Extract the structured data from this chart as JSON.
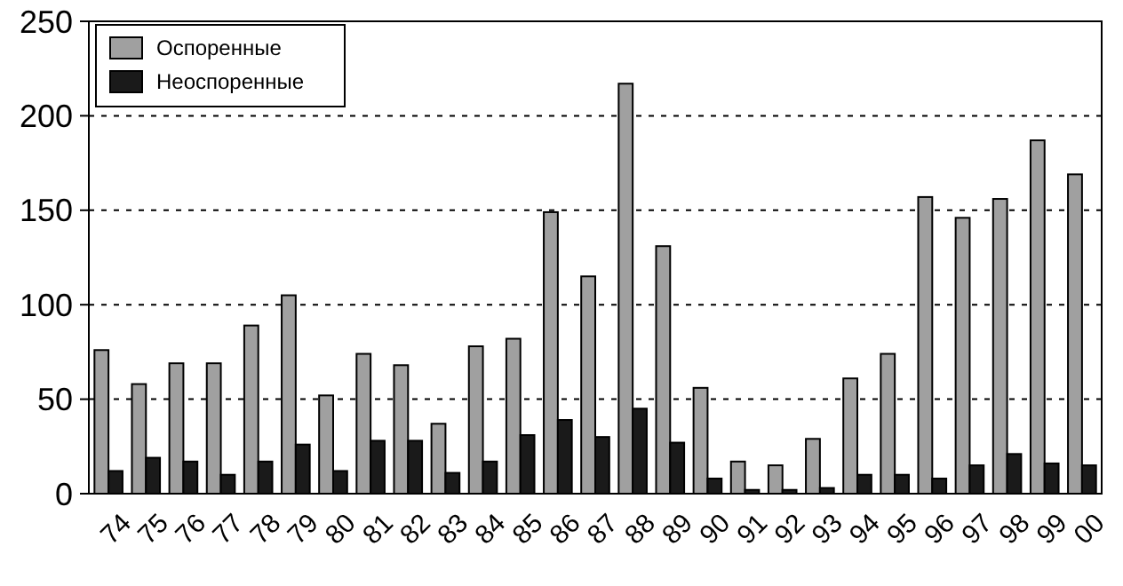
{
  "chart_data": {
    "type": "bar",
    "categories": [
      "74",
      "75",
      "76",
      "77",
      "78",
      "79",
      "80",
      "81",
      "82",
      "83",
      "84",
      "85",
      "86",
      "87",
      "88",
      "89",
      "90",
      "91",
      "92",
      "93",
      "94",
      "95",
      "96",
      "97",
      "98",
      "99",
      "00"
    ],
    "series": [
      {
        "name": "Оспоренные",
        "color": "#a0a0a0",
        "values": [
          76,
          58,
          69,
          69,
          89,
          105,
          52,
          74,
          68,
          37,
          78,
          82,
          149,
          115,
          217,
          131,
          56,
          17,
          15,
          29,
          61,
          74,
          157,
          146,
          156,
          187,
          169
        ]
      },
      {
        "name": "Неоспоренные",
        "color": "#1a1a1a",
        "values": [
          12,
          19,
          17,
          10,
          17,
          26,
          12,
          28,
          28,
          11,
          17,
          31,
          39,
          30,
          45,
          27,
          8,
          2,
          2,
          3,
          10,
          10,
          8,
          15,
          21,
          16,
          15
        ]
      }
    ],
    "ylim": [
      0,
      250
    ],
    "yticks": [
      0,
      50,
      100,
      150,
      200,
      250
    ],
    "grid": "y",
    "legend": "top left"
  }
}
